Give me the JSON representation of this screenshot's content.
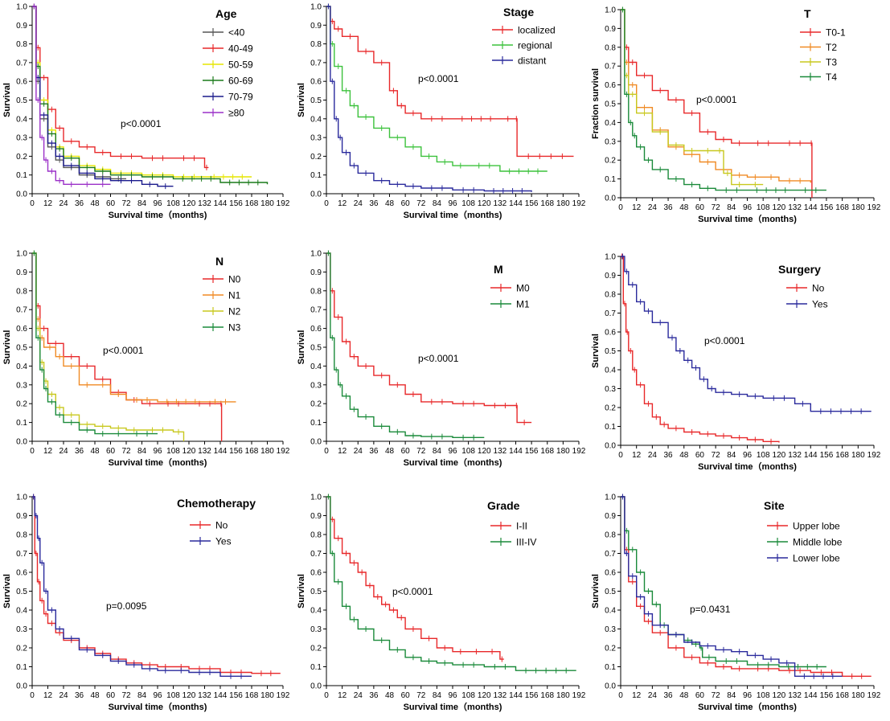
{
  "chart_data": [
    {
      "type": "line",
      "xlabel": "Survival time（months)",
      "ylabel": "Survival",
      "xlim": [
        0,
        192
      ],
      "ylim": [
        0,
        1.0
      ],
      "legend_title": "Age",
      "pvalue": "p<0.0001",
      "colors": [
        "#555555",
        "#e8282a",
        "#e6e600",
        "#1a7a1a",
        "#1a1a8c",
        "#9b30c8"
      ],
      "series": [
        {
          "name": "<40",
          "x": [
            0,
            3,
            6,
            12,
            18,
            24,
            36,
            48,
            60,
            72
          ],
          "y": [
            1.0,
            0.6,
            0.4,
            0.25,
            0.18,
            0.14,
            0.1,
            0.09,
            0.08,
            0.08
          ]
        },
        {
          "name": "40-49",
          "x": [
            0,
            3,
            6,
            12,
            18,
            24,
            36,
            48,
            60,
            84,
            108,
            132,
            135
          ],
          "y": [
            1.0,
            0.78,
            0.62,
            0.45,
            0.35,
            0.28,
            0.25,
            0.22,
            0.2,
            0.19,
            0.19,
            0.14,
            0.14
          ]
        },
        {
          "name": "50-59",
          "x": [
            0,
            3,
            6,
            12,
            18,
            24,
            36,
            48,
            60,
            84,
            108,
            132,
            168
          ],
          "y": [
            1.0,
            0.7,
            0.5,
            0.34,
            0.25,
            0.2,
            0.15,
            0.13,
            0.11,
            0.1,
            0.09,
            0.09,
            0.09
          ]
        },
        {
          "name": "60-69",
          "x": [
            0,
            3,
            6,
            12,
            18,
            24,
            36,
            48,
            60,
            84,
            108,
            144,
            180
          ],
          "y": [
            1.0,
            0.68,
            0.48,
            0.32,
            0.24,
            0.19,
            0.14,
            0.12,
            0.1,
            0.09,
            0.08,
            0.06,
            0.05
          ]
        },
        {
          "name": "70-79",
          "x": [
            0,
            3,
            6,
            12,
            18,
            24,
            36,
            48,
            60,
            84,
            96,
            108
          ],
          "y": [
            1.0,
            0.62,
            0.42,
            0.27,
            0.2,
            0.15,
            0.11,
            0.08,
            0.07,
            0.05,
            0.04,
            0.04
          ]
        },
        {
          "name": "≥80",
          "x": [
            0,
            3,
            6,
            9,
            12,
            18,
            24,
            36,
            48,
            60
          ],
          "y": [
            1.0,
            0.5,
            0.3,
            0.18,
            0.12,
            0.07,
            0.05,
            0.05,
            0.05,
            0.05
          ]
        }
      ]
    },
    {
      "type": "line",
      "xlabel": "Survival time（months)",
      "ylabel": "Survival",
      "xlim": [
        0,
        192
      ],
      "ylim": [
        0,
        1.0
      ],
      "legend_title": "Stage",
      "pvalue": "p<0.0001",
      "colors": [
        "#e8282a",
        "#3cc23c",
        "#2a2a9c"
      ],
      "series": [
        {
          "name": "localized",
          "x": [
            0,
            3,
            6,
            12,
            24,
            36,
            48,
            54,
            60,
            72,
            96,
            132,
            144,
            145,
            188
          ],
          "y": [
            1.0,
            0.92,
            0.88,
            0.84,
            0.76,
            0.7,
            0.55,
            0.47,
            0.43,
            0.4,
            0.4,
            0.4,
            0.4,
            0.2,
            0.2
          ]
        },
        {
          "name": "regional",
          "x": [
            0,
            3,
            6,
            12,
            18,
            24,
            36,
            48,
            60,
            72,
            84,
            96,
            108,
            132,
            168
          ],
          "y": [
            1.0,
            0.8,
            0.68,
            0.55,
            0.47,
            0.41,
            0.35,
            0.3,
            0.25,
            0.2,
            0.17,
            0.15,
            0.15,
            0.12,
            0.12
          ]
        },
        {
          "name": "distant",
          "x": [
            0,
            3,
            6,
            9,
            12,
            18,
            24,
            36,
            48,
            60,
            72,
            96,
            120,
            156
          ],
          "y": [
            1.0,
            0.6,
            0.4,
            0.3,
            0.22,
            0.15,
            0.11,
            0.07,
            0.05,
            0.04,
            0.03,
            0.02,
            0.015,
            0.01
          ]
        }
      ]
    },
    {
      "type": "line",
      "xlabel": "Survival time（months)",
      "ylabel": "Fraction survival",
      "xlim": [
        0,
        192
      ],
      "ylim": [
        0,
        1.0
      ],
      "legend_title": "T",
      "pvalue": "p<0.0001",
      "colors": [
        "#e8282a",
        "#f08a24",
        "#c8c81e",
        "#1a8a3a"
      ],
      "series": [
        {
          "name": "T0-1",
          "x": [
            0,
            3,
            6,
            12,
            24,
            36,
            48,
            60,
            72,
            84,
            96,
            120,
            144,
            145
          ],
          "y": [
            1.0,
            0.8,
            0.72,
            0.65,
            0.57,
            0.52,
            0.45,
            0.35,
            0.31,
            0.29,
            0.29,
            0.29,
            0.29,
            0.0
          ]
        },
        {
          "name": "T2",
          "x": [
            0,
            3,
            6,
            12,
            24,
            36,
            48,
            60,
            72,
            84,
            96,
            108,
            120,
            144
          ],
          "y": [
            1.0,
            0.72,
            0.6,
            0.48,
            0.36,
            0.27,
            0.23,
            0.19,
            0.15,
            0.12,
            0.11,
            0.11,
            0.09,
            0.08
          ]
        },
        {
          "name": "T3",
          "x": [
            0,
            3,
            6,
            12,
            24,
            36,
            48,
            60,
            72,
            78,
            84,
            96,
            108
          ],
          "y": [
            1.0,
            0.65,
            0.55,
            0.45,
            0.35,
            0.28,
            0.25,
            0.25,
            0.25,
            0.13,
            0.07,
            0.07,
            0.07
          ]
        },
        {
          "name": "T4",
          "x": [
            0,
            3,
            6,
            9,
            12,
            18,
            24,
            36,
            48,
            60,
            72,
            96,
            132,
            156
          ],
          "y": [
            1.0,
            0.55,
            0.4,
            0.33,
            0.27,
            0.2,
            0.15,
            0.1,
            0.07,
            0.05,
            0.04,
            0.04,
            0.04,
            0.04
          ]
        }
      ]
    },
    {
      "type": "line",
      "xlabel": "Survival time（months)",
      "ylabel": "Survival",
      "xlim": [
        0,
        192
      ],
      "ylim": [
        0,
        1.0
      ],
      "legend_title": "N",
      "pvalue": "p<0.0001",
      "colors": [
        "#e8282a",
        "#f08a24",
        "#c8c81e",
        "#1a8a3a"
      ],
      "series": [
        {
          "name": "N0",
          "x": [
            0,
            3,
            6,
            12,
            24,
            36,
            48,
            60,
            72,
            84,
            96,
            120,
            144,
            145
          ],
          "y": [
            1.0,
            0.72,
            0.6,
            0.52,
            0.45,
            0.4,
            0.33,
            0.26,
            0.22,
            0.2,
            0.2,
            0.2,
            0.2,
            0.0
          ]
        },
        {
          "name": "N1",
          "x": [
            0,
            3,
            6,
            9,
            18,
            24,
            36,
            48,
            60,
            72,
            96,
            132,
            156
          ],
          "y": [
            1.0,
            0.65,
            0.55,
            0.5,
            0.45,
            0.4,
            0.3,
            0.3,
            0.25,
            0.22,
            0.21,
            0.21,
            0.21
          ]
        },
        {
          "name": "N2",
          "x": [
            0,
            3,
            6,
            9,
            12,
            18,
            24,
            36,
            48,
            60,
            72,
            84,
            108,
            116
          ],
          "y": [
            1.0,
            0.6,
            0.42,
            0.32,
            0.25,
            0.18,
            0.14,
            0.09,
            0.08,
            0.07,
            0.06,
            0.06,
            0.05,
            0.0
          ]
        },
        {
          "name": "N3",
          "x": [
            0,
            3,
            6,
            9,
            12,
            18,
            24,
            36,
            48,
            60,
            72,
            96
          ],
          "y": [
            1.0,
            0.55,
            0.38,
            0.28,
            0.21,
            0.14,
            0.1,
            0.06,
            0.04,
            0.04,
            0.04,
            0.04
          ]
        }
      ]
    },
    {
      "type": "line",
      "xlabel": "Survival time（months)",
      "ylabel": "Survival",
      "xlim": [
        0,
        192
      ],
      "ylim": [
        0,
        1.0
      ],
      "legend_title": "M",
      "pvalue": "p<0.0001",
      "colors": [
        "#e8282a",
        "#1a8a3a"
      ],
      "series": [
        {
          "name": "M0",
          "x": [
            0,
            3,
            6,
            12,
            18,
            24,
            36,
            48,
            60,
            72,
            96,
            120,
            144,
            145,
            156
          ],
          "y": [
            1.0,
            0.8,
            0.66,
            0.53,
            0.45,
            0.4,
            0.35,
            0.3,
            0.25,
            0.21,
            0.2,
            0.19,
            0.19,
            0.1,
            0.1
          ]
        },
        {
          "name": "M1",
          "x": [
            0,
            3,
            6,
            9,
            12,
            18,
            24,
            36,
            48,
            60,
            72,
            96,
            120
          ],
          "y": [
            1.0,
            0.55,
            0.38,
            0.3,
            0.24,
            0.17,
            0.13,
            0.08,
            0.05,
            0.03,
            0.025,
            0.02,
            0.02
          ]
        }
      ]
    },
    {
      "type": "line",
      "xlabel": "Survival time（months)",
      "ylabel": "Survival",
      "xlim": [
        0,
        192
      ],
      "ylim": [
        0,
        1.0
      ],
      "legend_title": "Surgery",
      "pvalue": "p<0.0001",
      "colors": [
        "#e8282a",
        "#2a2a9c"
      ],
      "series": [
        {
          "name": "No",
          "x": [
            0,
            2,
            4,
            6,
            9,
            12,
            18,
            24,
            30,
            36,
            48,
            60,
            72,
            84,
            96,
            108,
            120
          ],
          "y": [
            1.0,
            0.75,
            0.6,
            0.5,
            0.4,
            0.32,
            0.22,
            0.15,
            0.11,
            0.09,
            0.07,
            0.06,
            0.05,
            0.04,
            0.03,
            0.02,
            0.015
          ]
        },
        {
          "name": "Yes",
          "x": [
            0,
            3,
            6,
            12,
            18,
            24,
            36,
            42,
            48,
            54,
            60,
            66,
            72,
            84,
            96,
            108,
            132,
            144,
            190
          ],
          "y": [
            1.0,
            0.92,
            0.85,
            0.76,
            0.71,
            0.65,
            0.57,
            0.5,
            0.45,
            0.41,
            0.35,
            0.3,
            0.28,
            0.27,
            0.26,
            0.25,
            0.22,
            0.18,
            0.18
          ]
        }
      ]
    },
    {
      "type": "line",
      "xlabel": "Survival time（months)",
      "ylabel": "Survival",
      "xlim": [
        0,
        192
      ],
      "ylim": [
        0,
        1.0
      ],
      "legend_title": "Chemotherapy",
      "pvalue": "p=0.0095",
      "colors": [
        "#e8282a",
        "#2a2a9c"
      ],
      "series": [
        {
          "name": "No",
          "x": [
            0,
            2,
            4,
            6,
            9,
            12,
            18,
            24,
            36,
            48,
            60,
            72,
            84,
            96,
            108,
            120,
            144,
            168,
            190
          ],
          "y": [
            1.0,
            0.7,
            0.55,
            0.45,
            0.38,
            0.33,
            0.28,
            0.24,
            0.2,
            0.17,
            0.14,
            0.12,
            0.11,
            0.1,
            0.1,
            0.09,
            0.07,
            0.065,
            0.065
          ]
        },
        {
          "name": "Yes",
          "x": [
            0,
            2,
            4,
            6,
            9,
            12,
            18,
            24,
            36,
            48,
            60,
            72,
            84,
            96,
            108,
            120,
            144,
            168
          ],
          "y": [
            1.0,
            0.9,
            0.78,
            0.65,
            0.5,
            0.4,
            0.3,
            0.25,
            0.19,
            0.16,
            0.13,
            0.11,
            0.09,
            0.08,
            0.08,
            0.07,
            0.05,
            0.05
          ]
        }
      ]
    },
    {
      "type": "line",
      "xlabel": "Survival time（months)",
      "ylabel": "Survival",
      "xlim": [
        0,
        192
      ],
      "ylim": [
        0,
        1.0
      ],
      "legend_title": "Grade",
      "pvalue": "p<0.0001",
      "colors": [
        "#e8282a",
        "#1a8a3a"
      ],
      "series": [
        {
          "name": "I-II",
          "x": [
            0,
            3,
            6,
            12,
            18,
            24,
            30,
            36,
            42,
            48,
            54,
            60,
            72,
            84,
            96,
            108,
            120,
            132,
            135
          ],
          "y": [
            1.0,
            0.88,
            0.78,
            0.7,
            0.65,
            0.6,
            0.53,
            0.47,
            0.43,
            0.4,
            0.36,
            0.3,
            0.25,
            0.2,
            0.18,
            0.18,
            0.18,
            0.14,
            0.14
          ]
        },
        {
          "name": "III-IV",
          "x": [
            0,
            3,
            6,
            12,
            18,
            24,
            36,
            48,
            60,
            72,
            84,
            96,
            120,
            144,
            190
          ],
          "y": [
            1.0,
            0.7,
            0.55,
            0.42,
            0.35,
            0.3,
            0.24,
            0.19,
            0.15,
            0.13,
            0.12,
            0.11,
            0.1,
            0.08,
            0.08
          ]
        }
      ]
    },
    {
      "type": "line",
      "xlabel": "Survival time（months)",
      "ylabel": "Survival",
      "xlim": [
        0,
        192
      ],
      "ylim": [
        0,
        1.0
      ],
      "legend_title": "Site",
      "pvalue": "p=0.0431",
      "colors": [
        "#e8282a",
        "#1a8a3a",
        "#2a2a9c"
      ],
      "series": [
        {
          "name": "Upper lobe",
          "x": [
            0,
            3,
            6,
            12,
            18,
            24,
            36,
            48,
            60,
            72,
            84,
            96,
            120,
            144,
            168,
            190
          ],
          "y": [
            1.0,
            0.72,
            0.55,
            0.42,
            0.34,
            0.28,
            0.2,
            0.15,
            0.12,
            0.1,
            0.09,
            0.09,
            0.08,
            0.07,
            0.05,
            0.05
          ]
        },
        {
          "name": "Middle lobe",
          "x": [
            0,
            3,
            6,
            12,
            18,
            24,
            30,
            36,
            48,
            54,
            60,
            62,
            72,
            96,
            120,
            156
          ],
          "y": [
            1.0,
            0.82,
            0.72,
            0.6,
            0.5,
            0.43,
            0.32,
            0.27,
            0.24,
            0.22,
            0.2,
            0.15,
            0.13,
            0.11,
            0.1,
            0.1
          ]
        },
        {
          "name": "Lower lobe",
          "x": [
            0,
            3,
            6,
            12,
            18,
            24,
            36,
            48,
            60,
            72,
            84,
            96,
            108,
            120,
            132,
            168
          ],
          "y": [
            1.0,
            0.7,
            0.58,
            0.47,
            0.38,
            0.32,
            0.27,
            0.23,
            0.21,
            0.19,
            0.18,
            0.16,
            0.14,
            0.12,
            0.05,
            0.05
          ]
        }
      ]
    }
  ]
}
